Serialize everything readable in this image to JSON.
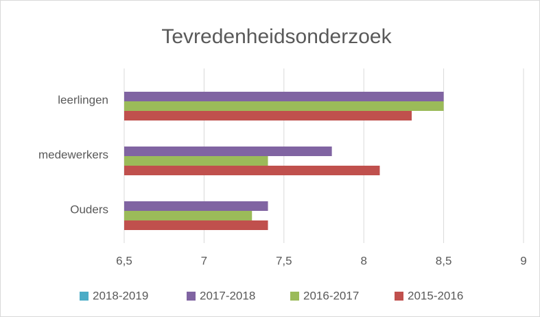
{
  "chart_data": {
    "type": "barh",
    "title": "Tevredenheidsonderzoek",
    "categories": [
      "leerlingen",
      "medewerkers",
      "Ouders"
    ],
    "series": [
      {
        "name": "2018-2019",
        "color": "#4bacc6",
        "values": [
          null,
          null,
          null
        ]
      },
      {
        "name": "2017-2018",
        "color": "#8064a2",
        "values": [
          8.5,
          7.8,
          7.4
        ]
      },
      {
        "name": "2016-2017",
        "color": "#9bbb59",
        "values": [
          8.5,
          7.4,
          7.3
        ]
      },
      {
        "name": "2015-2016",
        "color": "#c0504d",
        "values": [
          8.3,
          8.1,
          7.4
        ]
      }
    ],
    "xlim": [
      6.5,
      9
    ],
    "xticks": [
      {
        "value": 6.5,
        "label": "6,5"
      },
      7,
      {
        "value": 7.5,
        "label": "7,5"
      },
      8,
      {
        "value": 8.5,
        "label": "8,5"
      },
      9
    ],
    "grid": true,
    "legend": "bottom"
  }
}
